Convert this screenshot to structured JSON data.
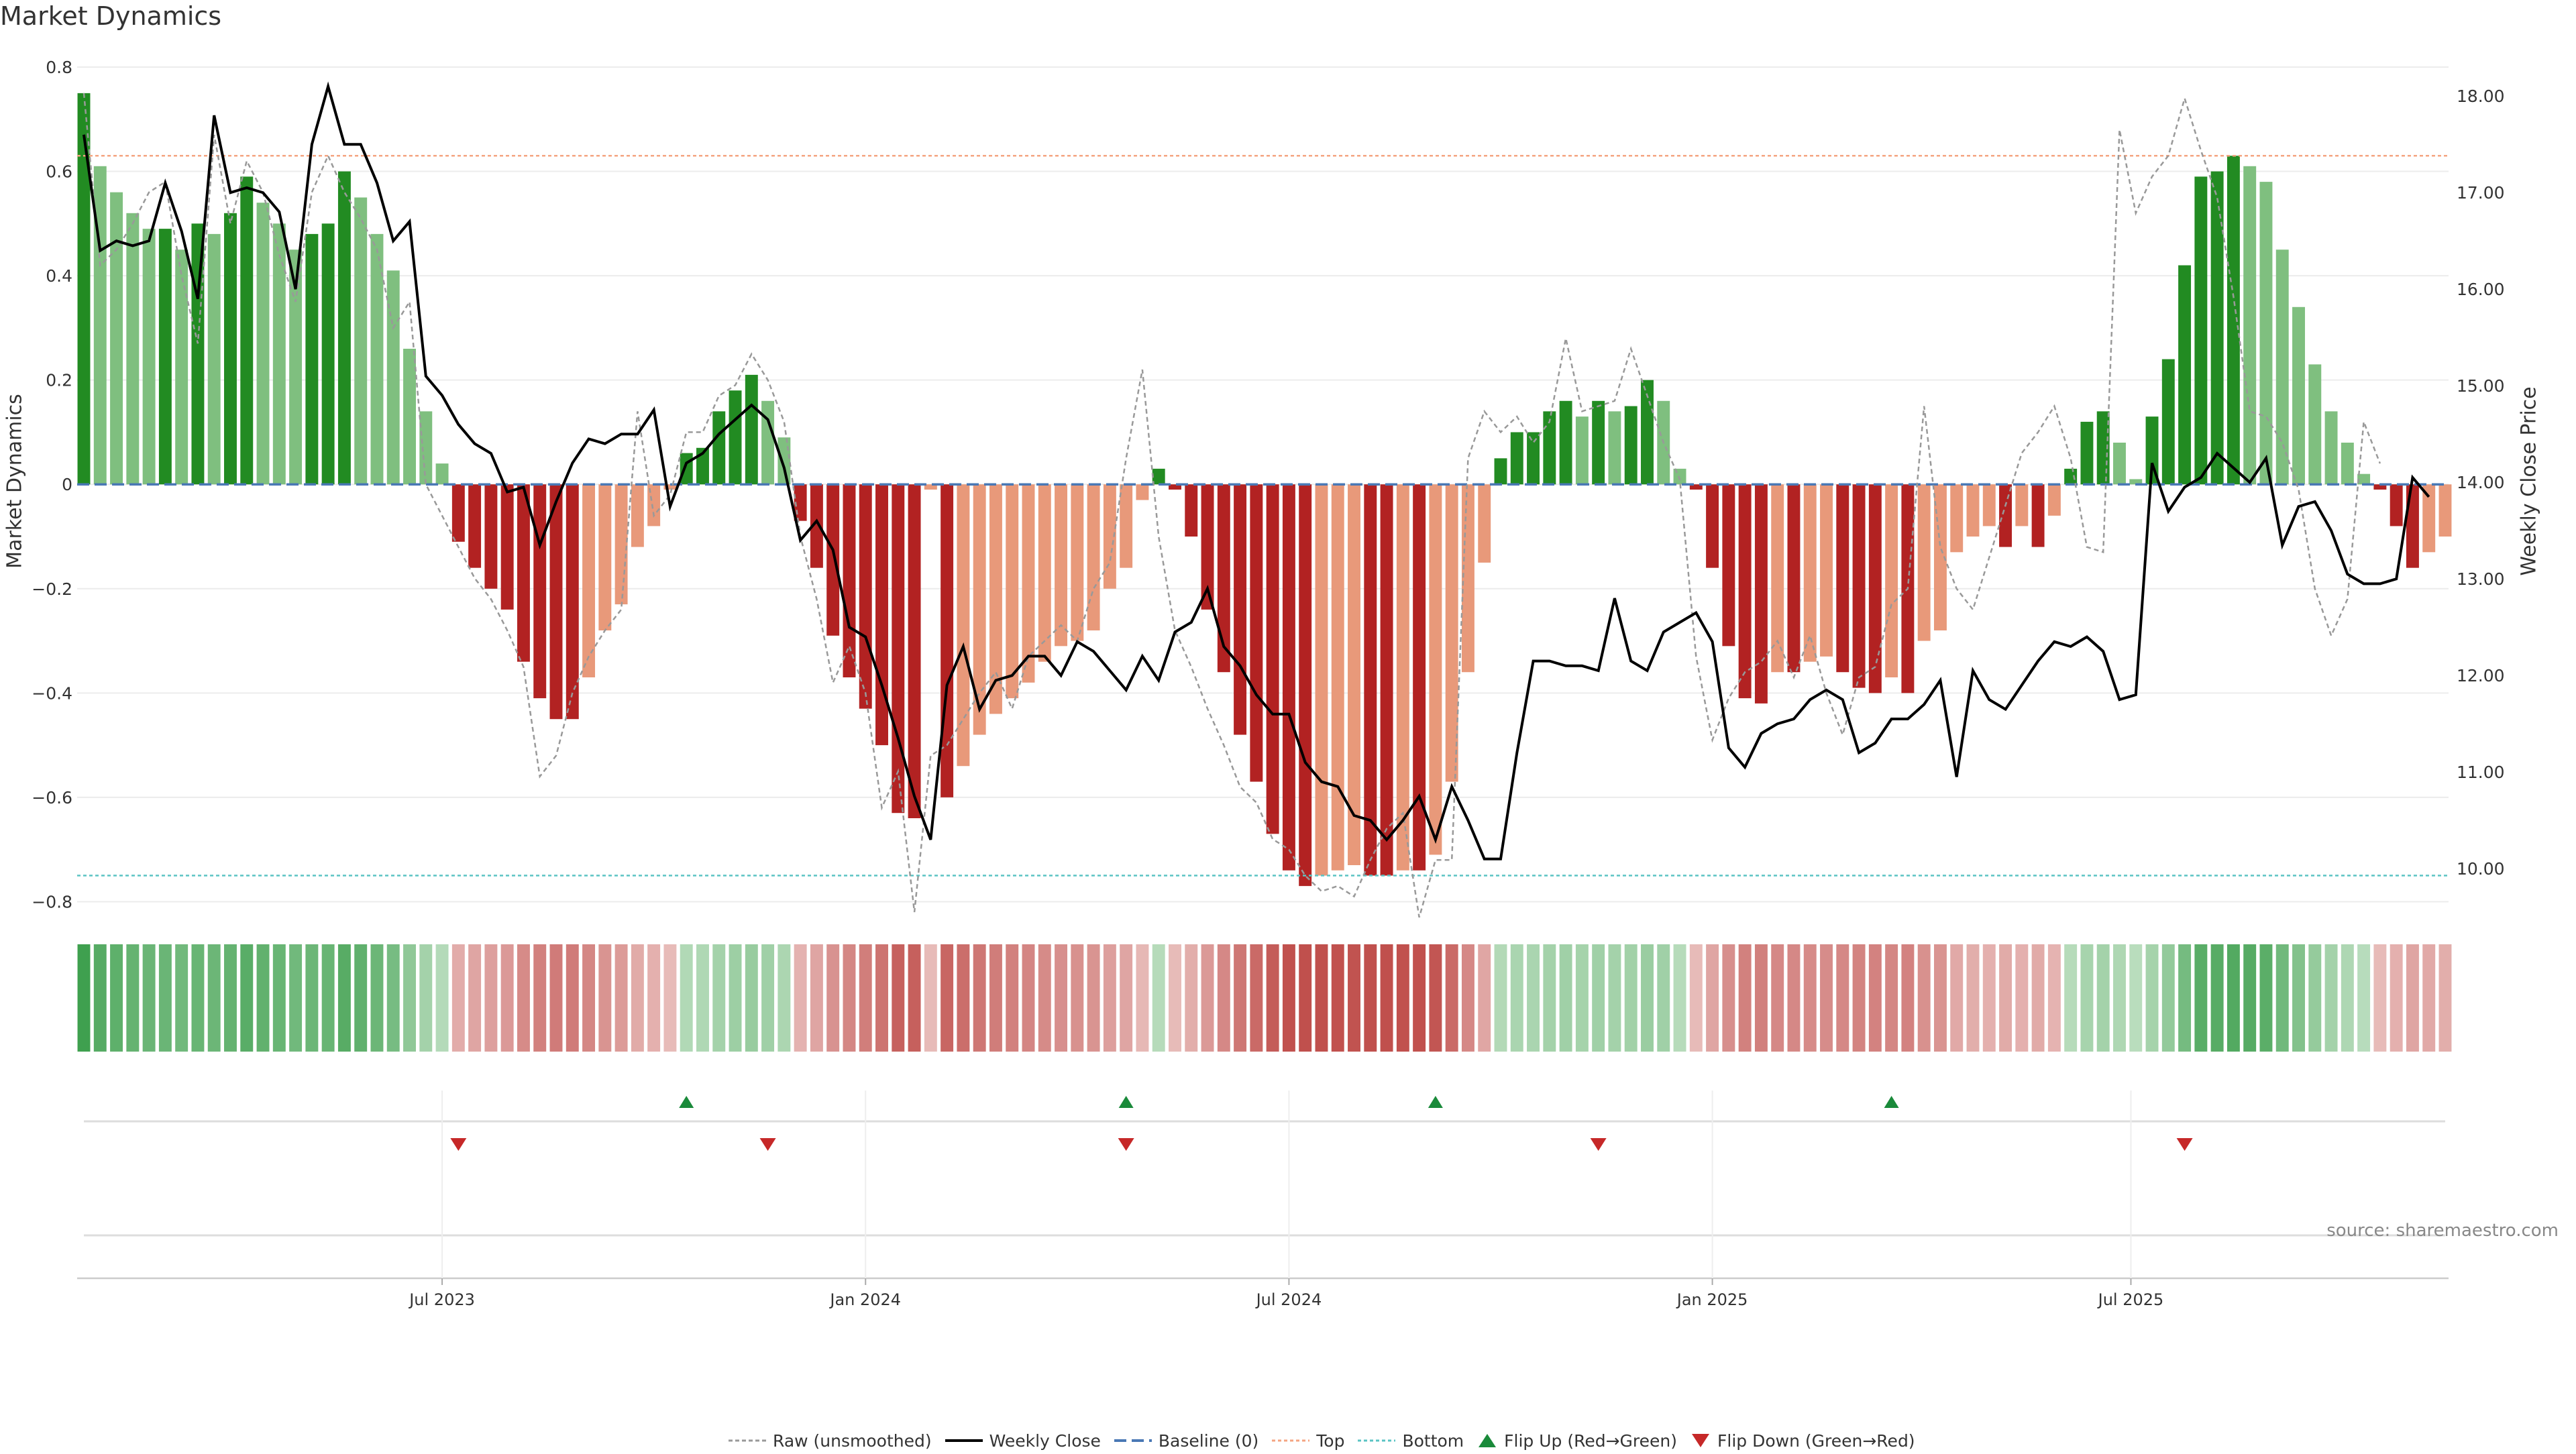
{
  "title": "Market Dynamics",
  "source": "source: sharemaestro.com",
  "colors": {
    "strong_green": "#228B22",
    "light_green": "#7fbf7f",
    "strong_red": "#b22222",
    "light_red": "#e8997a",
    "price": "#000000",
    "raw": "#999999",
    "baseline": "#4a78b5",
    "top": "#f4a582",
    "bottom": "#5bc4c4"
  },
  "legend": {
    "raw": "Raw (unsmoothed)",
    "close": "Weekly Close",
    "baseline": "Baseline (0)",
    "top": "Top",
    "bottom": "Bottom",
    "flip_up": "Flip Up (Red→Green)",
    "flip_down": "Flip Down (Green→Red)"
  },
  "chart_data": {
    "type": "bar",
    "title": "Market Dynamics",
    "ylabel": "Market Dynamics",
    "y2label": "Weekly Close Price",
    "ylim": [
      -0.82,
      0.8
    ],
    "y2lim": [
      9.55,
      18.3
    ],
    "yticks": [
      0.8,
      0.6,
      0.4,
      0.2,
      0,
      -0.2,
      -0.4,
      -0.6,
      -0.8
    ],
    "ytick_labels": [
      "0.8",
      "0.6",
      "0.4",
      "0.2",
      "0",
      "−0.2",
      "−0.4",
      "−0.6",
      "−0.8"
    ],
    "y2ticks": [
      18,
      17,
      16,
      15,
      14,
      13,
      12,
      11,
      10
    ],
    "y2tick_labels": [
      "18.00",
      "17.00",
      "16.00",
      "15.00",
      "14.00",
      "13.00",
      "12.00",
      "11.00",
      "10.00"
    ],
    "xticks": [
      "Jul 2023",
      "Jan 2024",
      "Jul 2024",
      "Jan 2025",
      "Jul 2025"
    ],
    "xtick_positions": [
      22,
      48,
      74,
      100,
      125.7
    ],
    "top_level": 0.63,
    "bottom_level": -0.75,
    "baseline": 0,
    "momentum": [
      0.75,
      0.61,
      0.56,
      0.52,
      0.49,
      0.49,
      0.45,
      0.5,
      0.48,
      0.52,
      0.59,
      0.54,
      0.5,
      0.45,
      0.48,
      0.5,
      0.6,
      0.55,
      0.48,
      0.41,
      0.26,
      0.14,
      0.04,
      -0.11,
      -0.16,
      -0.2,
      -0.24,
      -0.34,
      -0.41,
      -0.45,
      -0.45,
      -0.37,
      -0.28,
      -0.23,
      -0.12,
      -0.08,
      -0.01,
      0.06,
      0.07,
      0.14,
      0.18,
      0.21,
      0.16,
      0.09,
      -0.07,
      -0.16,
      -0.29,
      -0.37,
      -0.43,
      -0.5,
      -0.63,
      -0.64,
      -0.01,
      -0.6,
      -0.54,
      -0.48,
      -0.44,
      -0.41,
      -0.38,
      -0.34,
      -0.31,
      -0.3,
      -0.28,
      -0.2,
      -0.16,
      -0.03,
      0.03,
      -0.01,
      -0.1,
      -0.24,
      -0.36,
      -0.48,
      -0.57,
      -0.67,
      -0.74,
      -0.77,
      -0.75,
      -0.74,
      -0.73,
      -0.75,
      -0.75,
      -0.74,
      -0.74,
      -0.71,
      -0.57,
      -0.36,
      -0.15,
      0.05,
      0.1,
      0.1,
      0.14,
      0.16,
      0.13,
      0.16,
      0.14,
      0.15,
      0.2,
      0.16,
      0.03,
      -0.01,
      -0.16,
      -0.31,
      -0.41,
      -0.42,
      -0.36,
      -0.36,
      -0.34,
      -0.33,
      -0.36,
      -0.39,
      -0.4,
      -0.37,
      -0.4,
      -0.3,
      -0.28,
      -0.13,
      -0.1,
      -0.08,
      -0.12,
      -0.08,
      -0.12,
      -0.06,
      0.03,
      0.12,
      0.14,
      0.08,
      0.01,
      0.13,
      0.24,
      0.42,
      0.59,
      0.6,
      0.63,
      0.61,
      0.58,
      0.45,
      0.34,
      0.23,
      0.14,
      0.08,
      0.02,
      -0.01,
      -0.08,
      -0.16,
      -0.13,
      -0.1
    ],
    "price": [
      17.6,
      16.4,
      16.5,
      16.45,
      16.5,
      17.1,
      16.6,
      15.9,
      17.8,
      17.0,
      17.05,
      17.0,
      16.8,
      16.0,
      17.5,
      18.1,
      17.5,
      17.5,
      17.1,
      16.5,
      16.7,
      15.1,
      14.9,
      14.6,
      14.4,
      14.3,
      13.9,
      13.95,
      13.35,
      13.8,
      14.2,
      14.45,
      14.4,
      14.5,
      14.5,
      14.75,
      13.75,
      14.2,
      14.3,
      14.5,
      14.65,
      14.8,
      14.65,
      14.15,
      13.4,
      13.6,
      13.3,
      12.5,
      12.4,
      11.9,
      11.35,
      10.75,
      10.3,
      11.9,
      12.3,
      11.65,
      11.95,
      12.0,
      12.2,
      12.2,
      12.0,
      12.35,
      12.25,
      12.05,
      11.85,
      12.2,
      11.95,
      12.45,
      12.55,
      12.9,
      12.3,
      12.1,
      11.8,
      11.6,
      11.6,
      11.1,
      10.9,
      10.85,
      10.55,
      10.5,
      10.3,
      10.5,
      10.75,
      10.3,
      10.85,
      10.5,
      10.1,
      10.1,
      11.2,
      12.15,
      12.15,
      12.1,
      12.1,
      12.05,
      12.8,
      12.15,
      12.05,
      12.45,
      12.55,
      12.65,
      12.35,
      11.25,
      11.05,
      11.4,
      11.5,
      11.55,
      11.75,
      11.85,
      11.75,
      11.2,
      11.3,
      11.55,
      11.55,
      11.7,
      11.95,
      10.95,
      12.05,
      11.75,
      11.65,
      11.9,
      12.15,
      12.35,
      12.3,
      12.4,
      12.25,
      11.75,
      11.8,
      14.2,
      13.7,
      13.95,
      14.05,
      14.3,
      14.15,
      14.0,
      14.25,
      13.35,
      13.75,
      13.8,
      13.5,
      13.05,
      12.95,
      12.95,
      13.0,
      14.05,
      13.85
    ],
    "raw": [
      0.75,
      0.42,
      0.45,
      0.5,
      0.56,
      0.58,
      0.4,
      0.27,
      0.67,
      0.5,
      0.62,
      0.56,
      0.44,
      0.35,
      0.56,
      0.63,
      0.56,
      0.51,
      0.45,
      0.3,
      0.35,
      0.0,
      -0.06,
      -0.12,
      -0.18,
      -0.22,
      -0.28,
      -0.35,
      -0.56,
      -0.52,
      -0.4,
      -0.33,
      -0.28,
      -0.24,
      0.14,
      -0.06,
      -0.02,
      0.1,
      0.1,
      0.17,
      0.19,
      0.25,
      0.2,
      0.12,
      -0.1,
      -0.22,
      -0.38,
      -0.31,
      -0.4,
      -0.62,
      -0.55,
      -0.82,
      -0.52,
      -0.5,
      -0.45,
      -0.4,
      -0.36,
      -0.43,
      -0.33,
      -0.3,
      -0.27,
      -0.3,
      -0.2,
      -0.15,
      0.05,
      0.22,
      -0.1,
      -0.28,
      -0.35,
      -0.43,
      -0.5,
      -0.58,
      -0.61,
      -0.68,
      -0.7,
      -0.75,
      -0.78,
      -0.77,
      -0.79,
      -0.72,
      -0.66,
      -0.63,
      -0.83,
      -0.72,
      -0.72,
      0.05,
      0.14,
      0.1,
      0.13,
      0.08,
      0.12,
      0.28,
      0.14,
      0.15,
      0.16,
      0.26,
      0.17,
      0.08,
      0.01,
      -0.33,
      -0.49,
      -0.41,
      -0.36,
      -0.34,
      -0.3,
      -0.37,
      -0.29,
      -0.4,
      -0.48,
      -0.37,
      -0.35,
      -0.23,
      -0.2,
      0.15,
      -0.12,
      -0.2,
      -0.24,
      -0.14,
      -0.04,
      0.06,
      0.1,
      0.15,
      0.05,
      -0.12,
      -0.13,
      0.68,
      0.52,
      0.59,
      0.63,
      0.74,
      0.64,
      0.55,
      0.36,
      0.14,
      0.13,
      0.08,
      -0.01,
      -0.2,
      -0.29,
      -0.22,
      0.12,
      0.04
    ],
    "flip_up_index": [
      37,
      64,
      83,
      111
    ],
    "flip_down_index": [
      23,
      42,
      64,
      93,
      129
    ]
  }
}
